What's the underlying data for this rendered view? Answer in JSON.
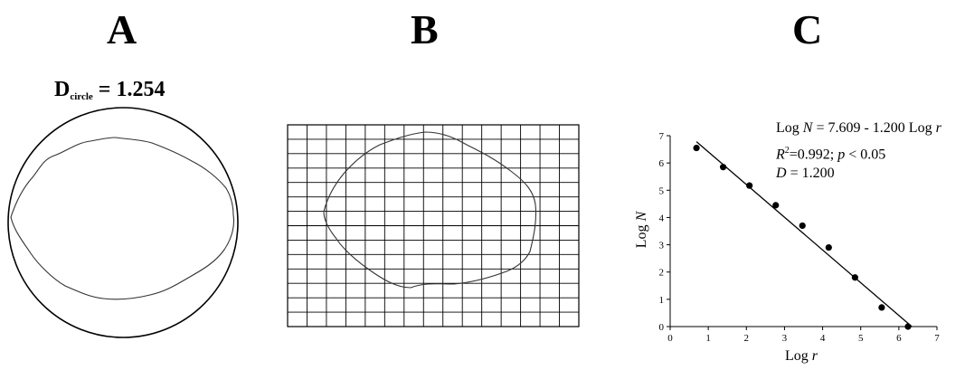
{
  "figure": {
    "panels": [
      {
        "letter": "A"
      },
      {
        "letter": "B"
      },
      {
        "letter": "C"
      }
    ],
    "panel_a": {
      "d_symbol": "D",
      "d_subscript": "circle",
      "d_value": "= 1.254"
    },
    "panel_c": {
      "equation": {
        "line1_prefix": "Log ",
        "line1_var": "N",
        "line1_rest": " = 7.609 - 1.200 Log ",
        "line1_var2": "r",
        "line2_R": "R",
        "line2_sup": "2",
        "line2_mid": "=0.992; ",
        "line2_p": "p",
        "line2_rest": " < 0.05",
        "line3_D": "D",
        "line3_rest": " = 1.200"
      },
      "xlabel_prefix": "Log ",
      "xlabel_var": "r",
      "ylabel_prefix": "Log ",
      "ylabel_var": "N"
    }
  },
  "chart_data": {
    "type": "scatter",
    "title": "",
    "xlabel": "Log r",
    "ylabel": "Log N",
    "xlim": [
      0,
      7
    ],
    "ylim": [
      0,
      7
    ],
    "xticks": [
      "0",
      "1",
      "2",
      "3",
      "4",
      "5",
      "6",
      "7"
    ],
    "yticks": [
      "0",
      "1",
      "2",
      "3",
      "4",
      "5",
      "6",
      "7"
    ],
    "grid": false,
    "points": [
      {
        "x": 0.69,
        "y": 6.55
      },
      {
        "x": 1.39,
        "y": 5.85
      },
      {
        "x": 2.08,
        "y": 5.17
      },
      {
        "x": 2.77,
        "y": 4.45
      },
      {
        "x": 3.47,
        "y": 3.7
      },
      {
        "x": 4.16,
        "y": 2.9
      },
      {
        "x": 4.85,
        "y": 1.8
      },
      {
        "x": 5.55,
        "y": 0.7
      },
      {
        "x": 6.24,
        "y": 0.0
      }
    ],
    "fit_line": {
      "intercept": 7.609,
      "slope": -1.2,
      "x_range": [
        0.69,
        6.34
      ]
    },
    "colors": {
      "ink": "#000000"
    }
  }
}
